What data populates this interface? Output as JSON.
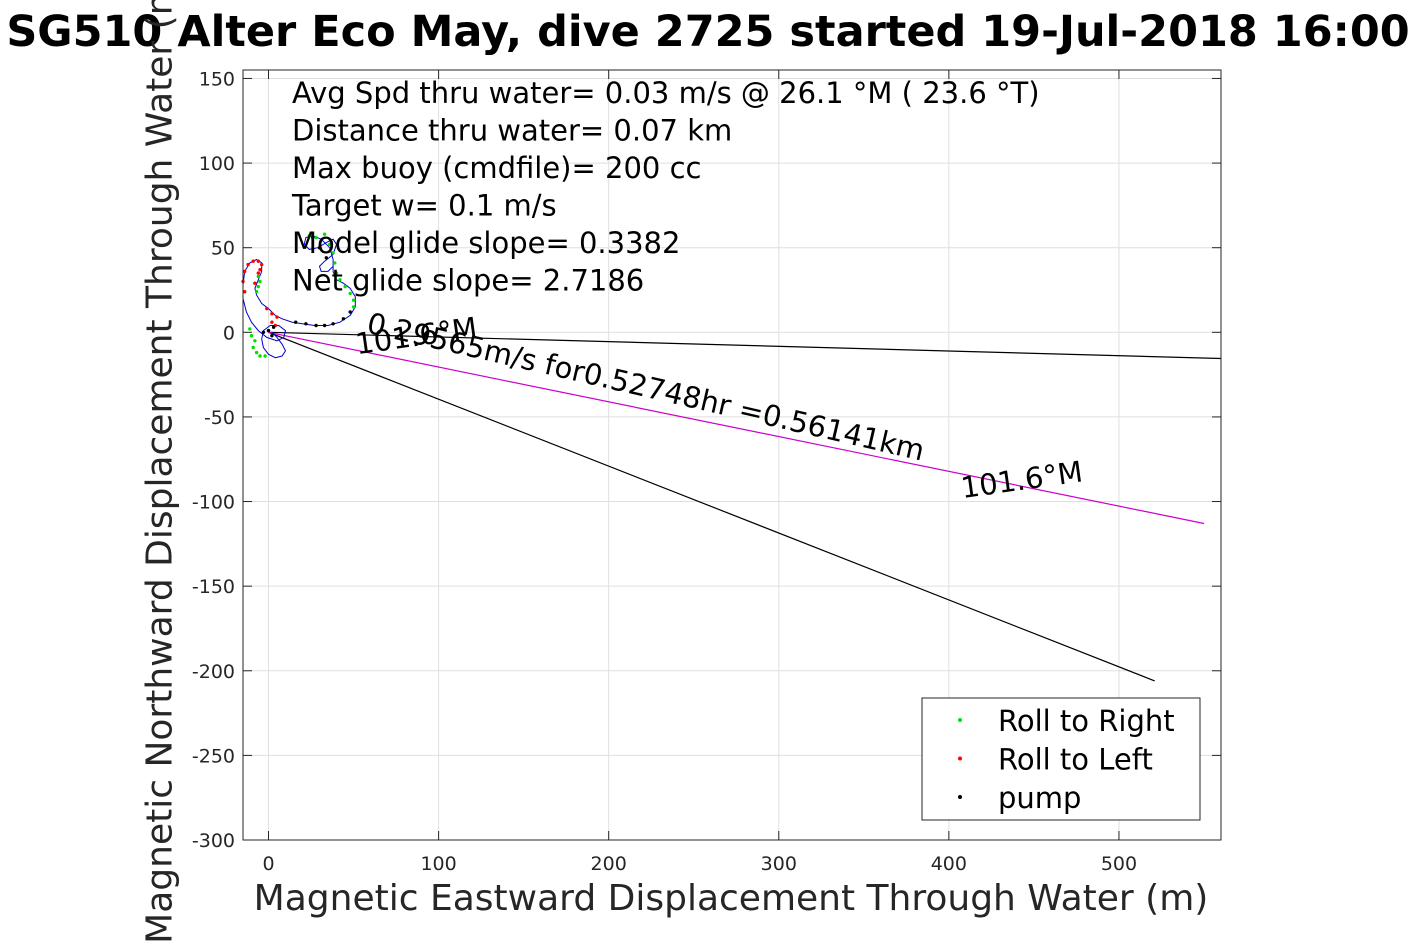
{
  "chart_data": {
    "type": "line",
    "title": "SG510 Alter Eco May, dive 2725 started 19-Jul-2018 16:00",
    "xlabel": "Magnetic Eastward Displacement Through Water (m)",
    "ylabel": "Magnetic Northward Displacement Through Water (m)",
    "xlim": [
      -15,
      560
    ],
    "ylim": [
      -300,
      155
    ],
    "x_ticks": [
      0,
      100,
      200,
      300,
      400,
      500
    ],
    "x_tick_labels": [
      "0",
      "100",
      "200",
      "300",
      "400",
      "500"
    ],
    "y_ticks": [
      150,
      100,
      50,
      0,
      -50,
      -100,
      -150,
      -200,
      -250,
      -300
    ],
    "y_tick_labels": [
      "150",
      "100",
      "50",
      "0",
      "-50",
      "-100",
      "-150",
      "-200",
      "-250",
      "-300"
    ],
    "grid": true,
    "legend_position": "bottom-right",
    "info_lines": [
      "Avg Spd thru water=  0.03 m/s @  26.1 °M ( 23.6 °T)",
      "Distance thru water=  0.07 km",
      "Max buoy (cmdfile)= 200 cc",
      "Target w= 0.1 m/s",
      "Model glide slope= 0.3382",
      "Net glide slope= 2.7186"
    ],
    "annotations": [
      {
        "text": "0.29565m/s for0.52748hr =0.56141km",
        "x": 57,
        "y": 0,
        "rotation_deg": -13.0
      },
      {
        "text": "101.6°M",
        "x": 52,
        "y": -13,
        "rotation_deg": 8.0
      },
      {
        "text": "101.6°M",
        "x": 408,
        "y": -98,
        "rotation_deg": 8.0
      }
    ],
    "series": [
      {
        "name": "Roll to Right",
        "color": "#00e000",
        "marker": "dot"
      },
      {
        "name": "Roll to Left",
        "color": "#ff0000",
        "marker": "dot"
      },
      {
        "name": "pump",
        "color": "#000000",
        "marker": "dot"
      }
    ],
    "lines": [
      {
        "color": "#000000",
        "points": [
          [
            0,
            0
          ],
          [
            560,
            -15.5
          ]
        ]
      },
      {
        "color": "#000000",
        "points": [
          [
            0,
            0
          ],
          [
            521,
            -206
          ]
        ]
      },
      {
        "color": "#cc00cc",
        "points": [
          [
            0,
            0
          ],
          [
            550,
            -113
          ]
        ]
      }
    ],
    "track": {
      "color": "#0000cc",
      "points": [
        [
          2,
          0
        ],
        [
          5,
          -3
        ],
        [
          8,
          -7
        ],
        [
          10,
          -11
        ],
        [
          8,
          -14
        ],
        [
          4,
          -15
        ],
        [
          0,
          -13
        ],
        [
          -3,
          -9
        ],
        [
          -4,
          -4
        ],
        [
          -3,
          1
        ],
        [
          1,
          4
        ],
        [
          6,
          4
        ],
        [
          10,
          1
        ],
        [
          9,
          -3
        ],
        [
          5,
          -5
        ],
        [
          -1,
          -3
        ],
        [
          -6,
          1
        ],
        [
          -10,
          6
        ],
        [
          -13,
          12
        ],
        [
          -15,
          20
        ],
        [
          -15,
          28
        ],
        [
          -14,
          36
        ],
        [
          -11,
          41
        ],
        [
          -7,
          43
        ],
        [
          -4,
          41
        ],
        [
          -4,
          36
        ],
        [
          -6,
          31
        ],
        [
          -8,
          26
        ],
        [
          -7,
          22
        ],
        [
          -4,
          17
        ],
        [
          0,
          14
        ],
        [
          4,
          10
        ],
        [
          8,
          8
        ],
        [
          14,
          6
        ],
        [
          20,
          5
        ],
        [
          27,
          4
        ],
        [
          35,
          4
        ],
        [
          42,
          6
        ],
        [
          48,
          10
        ],
        [
          51,
          15
        ],
        [
          51,
          21
        ],
        [
          48,
          26
        ],
        [
          44,
          29
        ],
        [
          40,
          31
        ],
        [
          38,
          36
        ],
        [
          38,
          43
        ],
        [
          36,
          50
        ],
        [
          31,
          55
        ],
        [
          26,
          57
        ],
        [
          22,
          56
        ],
        [
          21,
          52
        ],
        [
          24,
          49
        ],
        [
          29,
          50
        ],
        [
          34,
          53
        ],
        [
          38,
          55
        ],
        [
          40,
          52
        ],
        [
          38,
          46
        ],
        [
          33,
          42
        ],
        [
          30,
          39
        ],
        [
          31,
          36
        ],
        [
          35,
          36
        ],
        [
          38,
          39
        ]
      ]
    },
    "roll_right_points": [
      [
        -8,
        -5
      ],
      [
        -9,
        -9
      ],
      [
        -7,
        -12
      ],
      [
        -5,
        -14
      ],
      [
        -2,
        -14
      ],
      [
        -10,
        -2
      ],
      [
        -11,
        2
      ],
      [
        -7,
        24
      ],
      [
        -6,
        27
      ],
      [
        -5,
        30
      ],
      [
        -6,
        33
      ],
      [
        36,
        52
      ],
      [
        38,
        47
      ],
      [
        39,
        41
      ],
      [
        40,
        35
      ],
      [
        42,
        31
      ],
      [
        45,
        27
      ],
      [
        48,
        23
      ],
      [
        50,
        19
      ],
      [
        50,
        15
      ],
      [
        28,
        56
      ],
      [
        24,
        57
      ],
      [
        33,
        58
      ]
    ],
    "roll_left_points": [
      [
        -14,
        24
      ],
      [
        -15,
        30
      ],
      [
        -14,
        36
      ],
      [
        -12,
        40
      ],
      [
        -9,
        42
      ],
      [
        -6,
        42
      ],
      [
        -4,
        40
      ],
      [
        -5,
        37
      ],
      [
        -6,
        35
      ],
      [
        -8,
        29
      ],
      [
        -1,
        14
      ],
      [
        2,
        11
      ],
      [
        5,
        9
      ],
      [
        4,
        4
      ],
      [
        2,
        6
      ]
    ],
    "pump_points": [
      [
        16,
        6
      ],
      [
        22,
        5
      ],
      [
        28,
        4
      ],
      [
        33,
        4
      ],
      [
        38,
        5
      ],
      [
        44,
        8
      ],
      [
        48,
        12
      ],
      [
        26,
        56
      ],
      [
        30,
        50
      ],
      [
        34,
        44
      ],
      [
        -3,
        0
      ],
      [
        0,
        1
      ],
      [
        3,
        3
      ],
      [
        2,
        -2
      ]
    ]
  }
}
